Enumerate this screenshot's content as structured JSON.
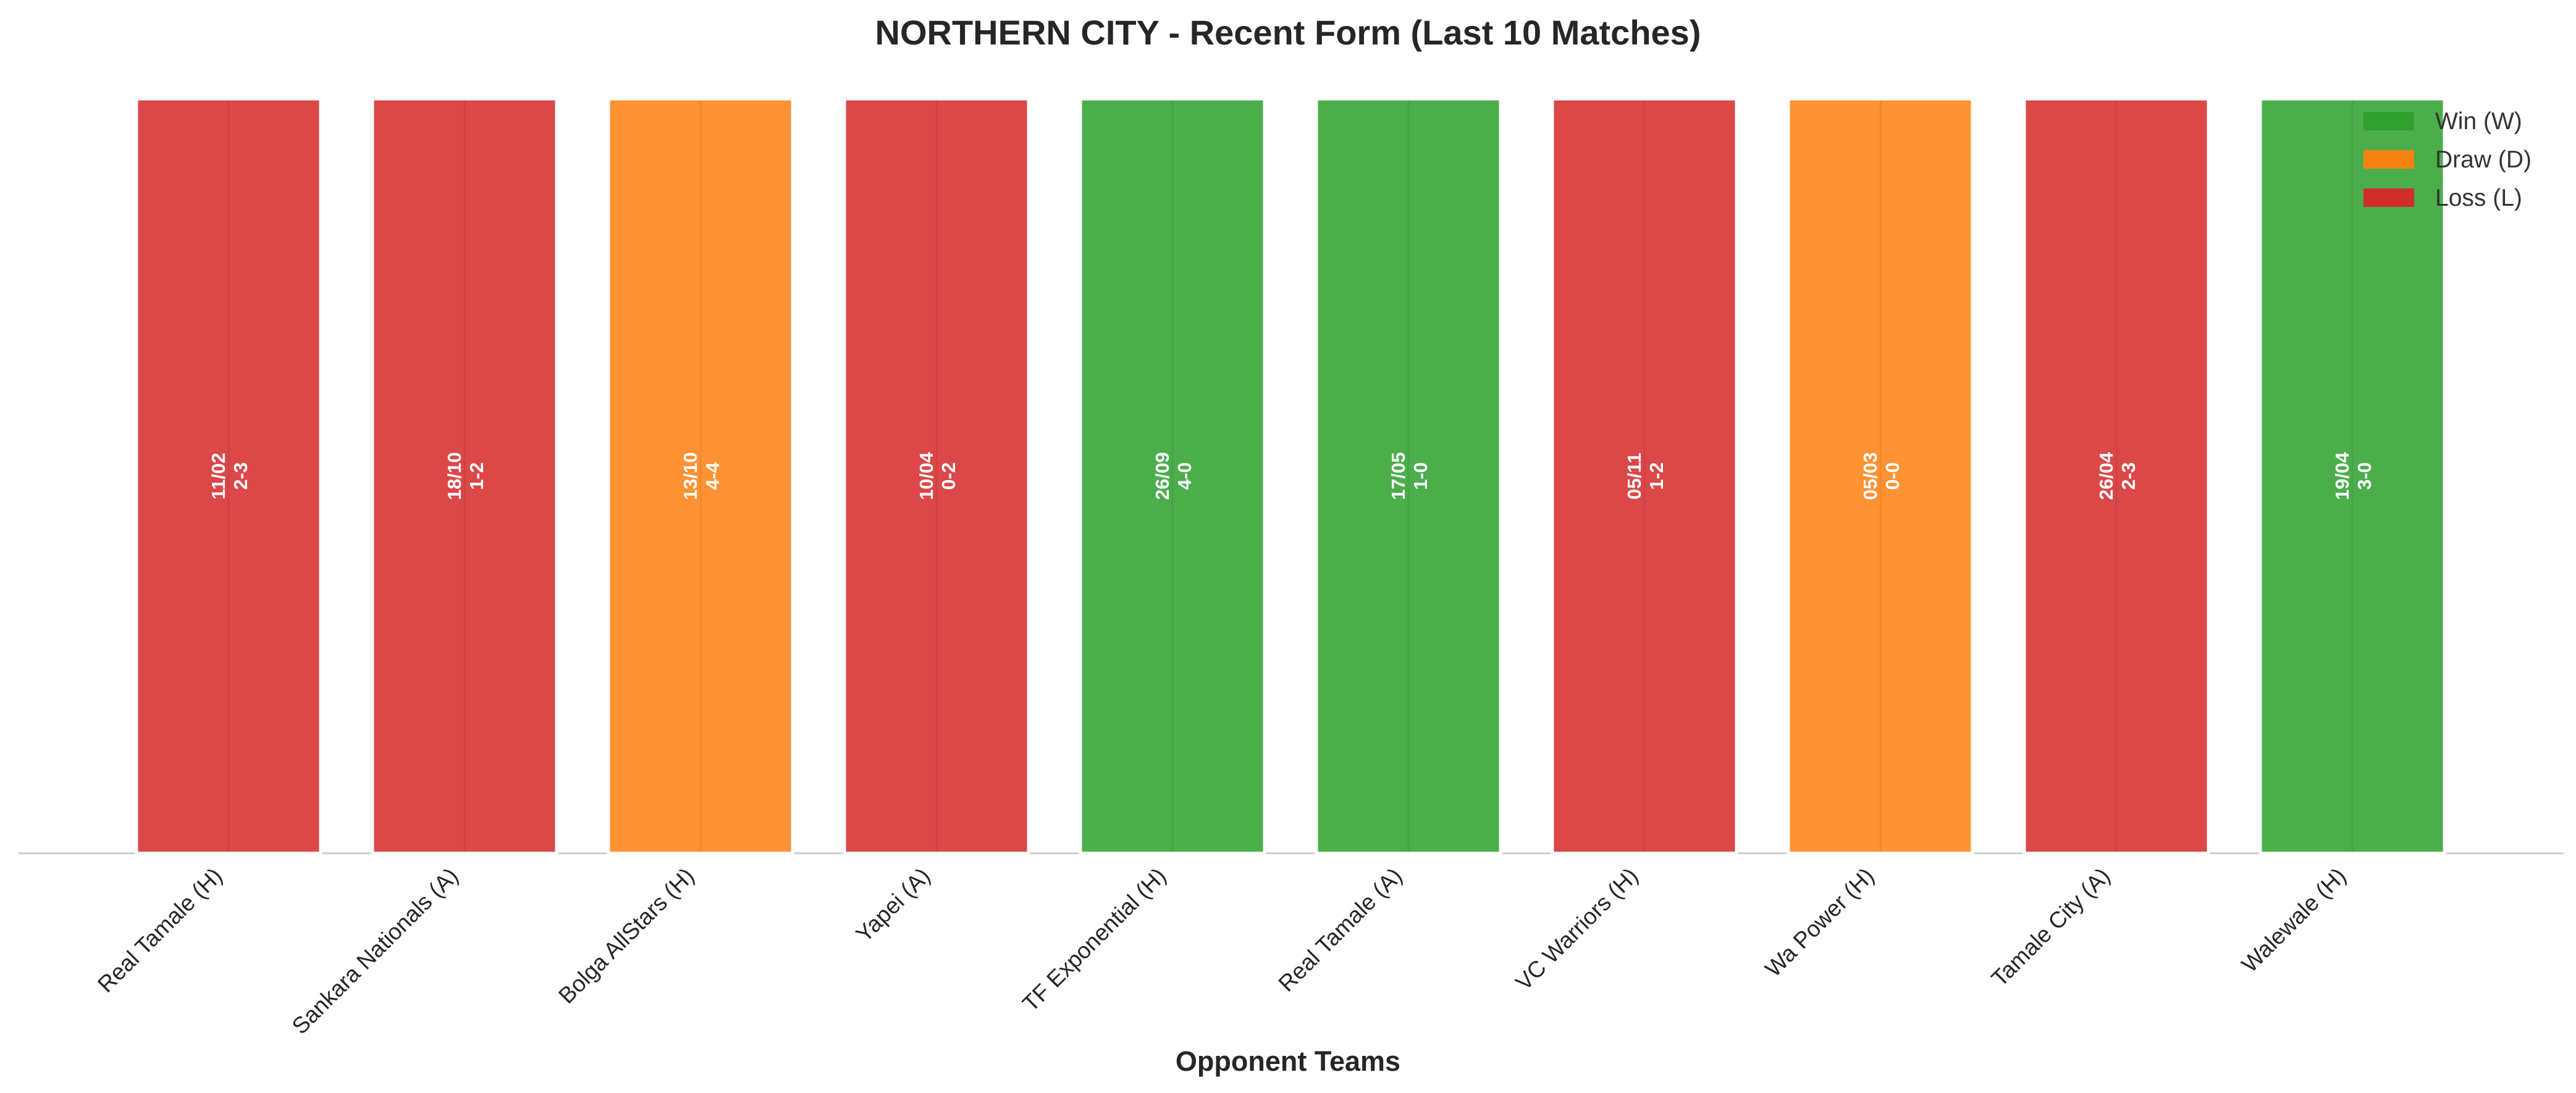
{
  "chart_data": {
    "type": "bar",
    "title": "NORTHERN CITY - Recent Form (Last 10 Matches)",
    "xlabel": "Opponent Teams",
    "ylabel": "",
    "ylim": [
      0,
      1
    ],
    "grid": false,
    "legend_position": "top-right",
    "legend": [
      {
        "result": "W",
        "label": "Win (W)",
        "color": "#2ca02c"
      },
      {
        "result": "D",
        "label": "Draw (D)",
        "color": "#ff7f0e"
      },
      {
        "result": "L",
        "label": "Loss (L)",
        "color": "#d62728"
      }
    ],
    "categories": [
      "Real Tamale (H)",
      "Sankara Nationals (A)",
      "Bolga AllStars (H)",
      "Yapei (A)",
      "TF Exponential (H)",
      "Real Tamale (A)",
      "VC Warriors (H)",
      "Wa Power (H)",
      "Tamale City (A)",
      "Walewale (H)"
    ],
    "values": [
      1,
      1,
      1,
      1,
      1,
      1,
      1,
      1,
      1,
      1
    ],
    "results": [
      "L",
      "L",
      "D",
      "L",
      "W",
      "W",
      "L",
      "D",
      "L",
      "W"
    ],
    "dates": [
      "11/02",
      "18/10",
      "13/10",
      "10/04",
      "26/09",
      "17/05",
      "05/11",
      "05/03",
      "26/04",
      "19/04"
    ],
    "scores": [
      "2-3",
      "1-2",
      "4-4",
      "0-2",
      "4-0",
      "1-0",
      "1-2",
      "0-0",
      "2-3",
      "3-0"
    ]
  }
}
